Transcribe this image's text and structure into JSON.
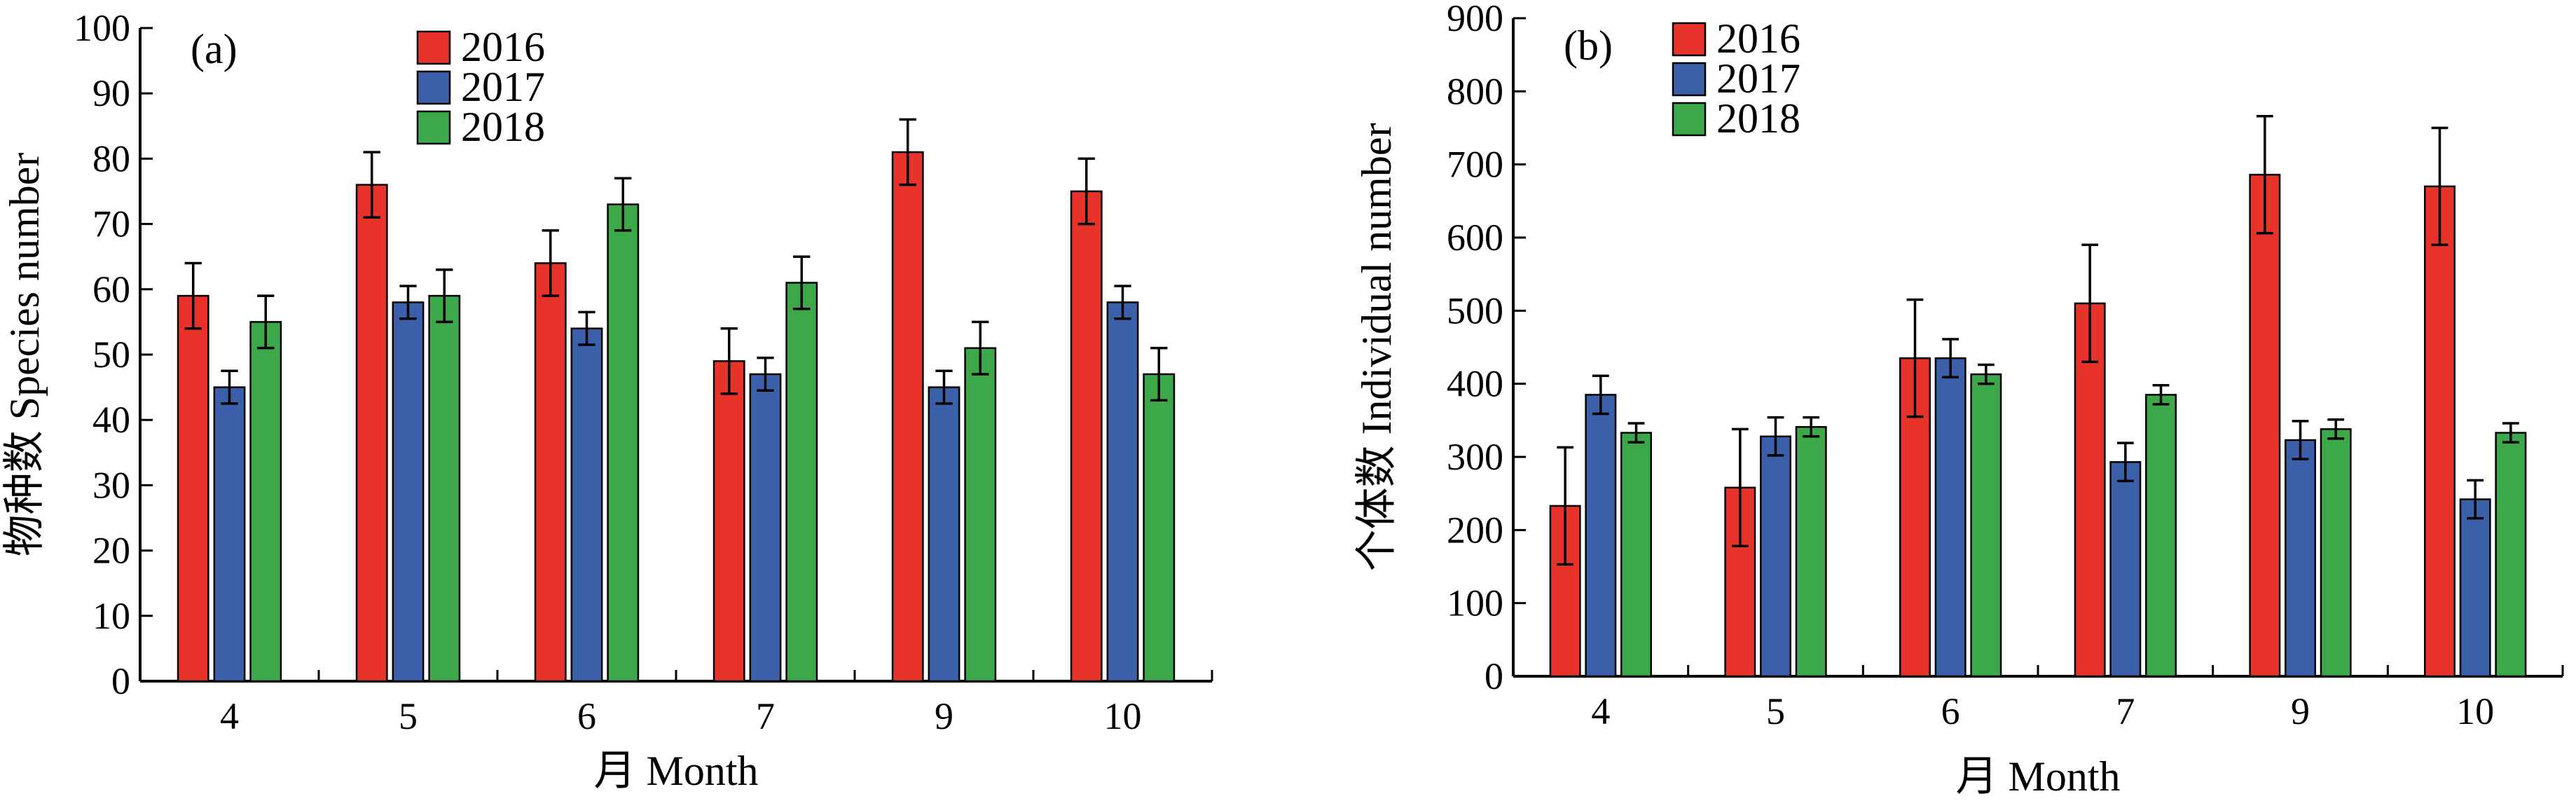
{
  "chart_data": [
    {
      "type": "bar",
      "panel_label": "(a)",
      "categories": [
        "4",
        "5",
        "6",
        "7",
        "9",
        "10"
      ],
      "xlabel": "月 Month",
      "ylabel": "物种数 Species number",
      "ylim": [
        0,
        100
      ],
      "yticks": [
        "0",
        "10",
        "20",
        "30",
        "40",
        "50",
        "60",
        "70",
        "80",
        "90",
        "100"
      ],
      "legend_position": "top-center",
      "series": [
        {
          "name": "2016",
          "color": "#e8332a",
          "values": [
            59,
            76,
            64,
            49,
            81,
            75
          ],
          "errors": [
            5,
            5,
            5,
            5,
            5,
            5
          ]
        },
        {
          "name": "2017",
          "color": "#3b5fa8",
          "values": [
            45,
            58,
            54,
            47,
            45,
            58
          ],
          "errors": [
            2.5,
            2.5,
            2.5,
            2.5,
            2.5,
            2.5
          ]
        },
        {
          "name": "2018",
          "color": "#3da84a",
          "values": [
            55,
            59,
            73,
            61,
            51,
            47
          ],
          "errors": [
            4,
            4,
            4,
            4,
            4,
            4
          ]
        }
      ]
    },
    {
      "type": "bar",
      "panel_label": "(b)",
      "categories": [
        "4",
        "5",
        "6",
        "7",
        "9",
        "10"
      ],
      "xlabel": "月 Month",
      "ylabel": "个体数 Individual number",
      "ylim": [
        0,
        900
      ],
      "yticks": [
        "0",
        "100",
        "200",
        "300",
        "400",
        "500",
        "600",
        "700",
        "800",
        "900"
      ],
      "legend_position": "top-center",
      "series": [
        {
          "name": "2016",
          "color": "#e8332a",
          "values": [
            233,
            258,
            435,
            510,
            686,
            670
          ],
          "errors": [
            80,
            80,
            80,
            80,
            80,
            80
          ]
        },
        {
          "name": "2017",
          "color": "#3b5fa8",
          "values": [
            385,
            328,
            435,
            293,
            323,
            242
          ],
          "errors": [
            26,
            26,
            26,
            26,
            26,
            26
          ]
        },
        {
          "name": "2018",
          "color": "#3da84a",
          "values": [
            333,
            341,
            413,
            385,
            338,
            333
          ],
          "errors": [
            13,
            13,
            13,
            13,
            13,
            13
          ]
        }
      ]
    }
  ]
}
